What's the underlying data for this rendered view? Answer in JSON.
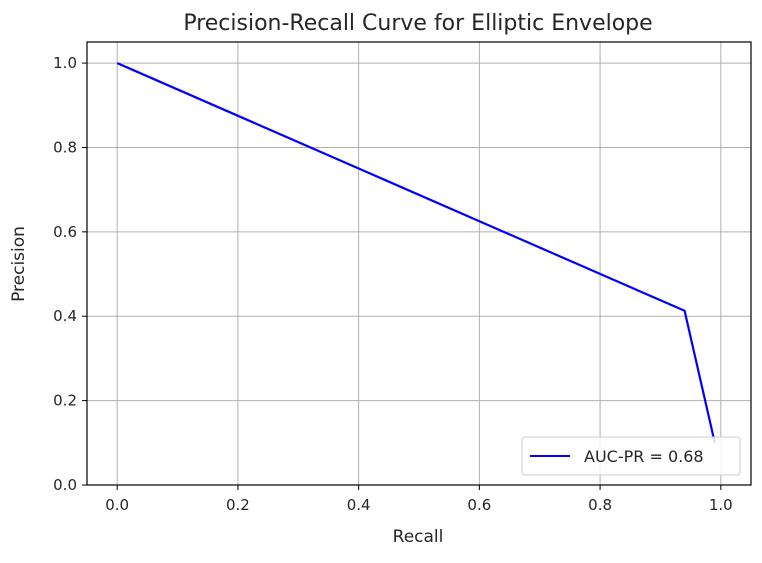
{
  "chart_data": {
    "type": "line",
    "title": "Precision-Recall Curve for Elliptic Envelope",
    "xlabel": "Recall",
    "ylabel": "Precision",
    "xlim": [
      -0.05,
      1.05
    ],
    "ylim": [
      0.0,
      1.05
    ],
    "x_ticks": [
      "0.0",
      "0.2",
      "0.4",
      "0.6",
      "0.8",
      "1.0"
    ],
    "y_ticks": [
      "0.0",
      "0.2",
      "0.4",
      "0.6",
      "0.8",
      "1.0"
    ],
    "grid": true,
    "legend_position": "lower right",
    "series": [
      {
        "name": "AUC-PR = 0.68",
        "color": "#0000ff",
        "x": [
          0.0,
          0.94,
          0.99
        ],
        "y": [
          1.0,
          0.413,
          0.1
        ]
      }
    ]
  }
}
